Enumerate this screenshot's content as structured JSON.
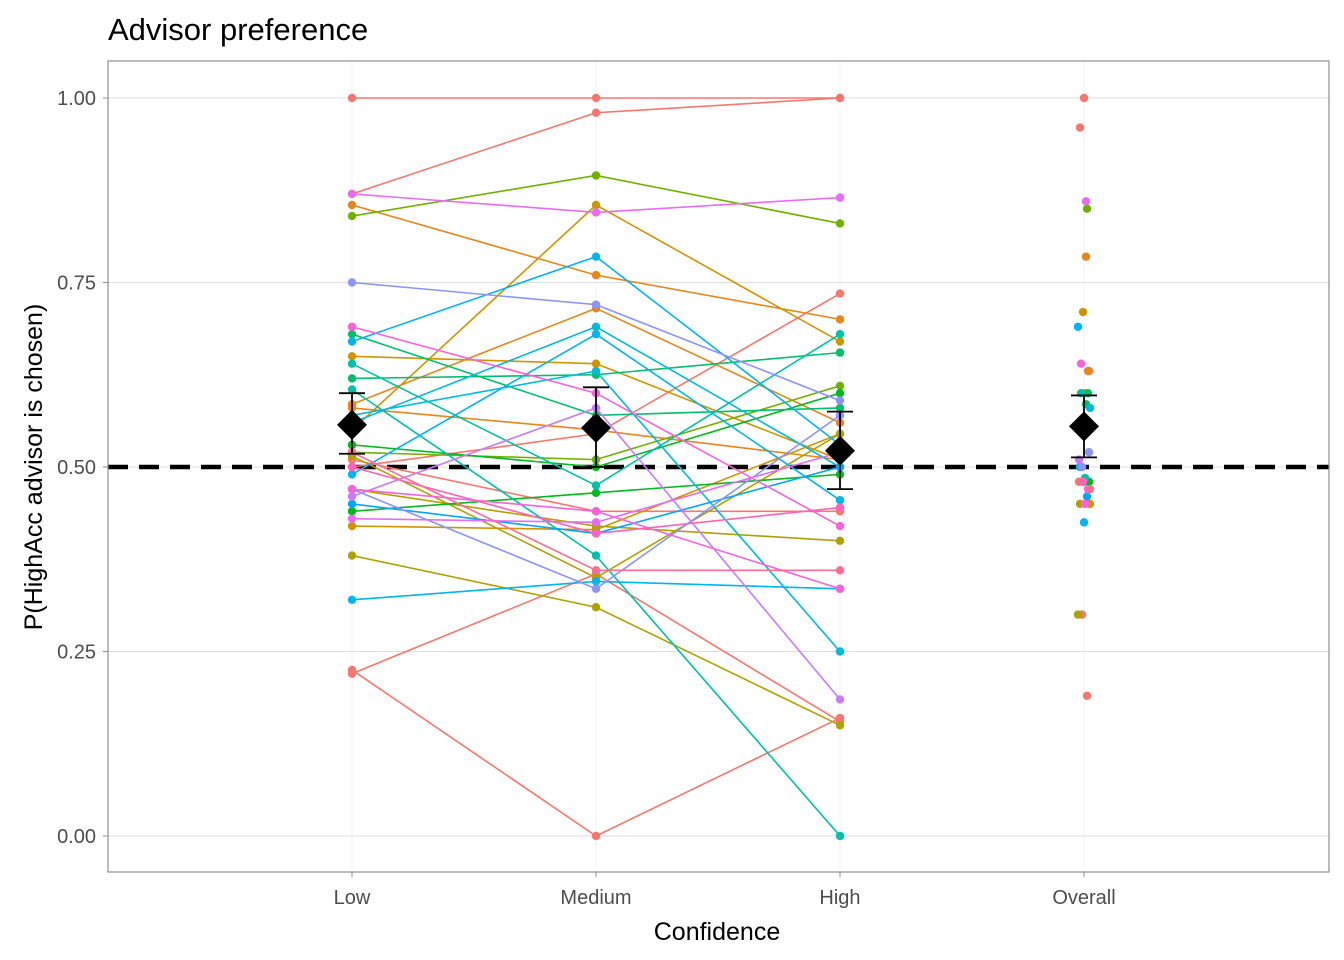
{
  "chart_data": {
    "type": "line",
    "title": "Advisor preference",
    "xlabel": "Confidence",
    "ylabel": "P(HighAcc advisor is chosen)",
    "categories": [
      "Low",
      "Medium",
      "High",
      "Overall"
    ],
    "ylim": [
      -0.05,
      1.05
    ],
    "yticks": [
      0.0,
      0.25,
      0.5,
      0.75,
      1.0
    ],
    "ytick_labels": [
      "0.00",
      "0.25",
      "0.50",
      "0.75",
      "1.00"
    ],
    "reference_line": {
      "y": 0.5,
      "style": "dashed",
      "color": "#000000"
    },
    "grid": true,
    "legend": "none",
    "series": [
      {
        "color": "#F8766D",
        "values": [
          1.0,
          1.0,
          1.0,
          1.0
        ]
      },
      {
        "color": "#F8766D",
        "values": [
          0.87,
          0.98,
          1.0,
          0.96
        ]
      },
      {
        "color": "#F8766D",
        "values": [
          0.225,
          0.0,
          0.16,
          0.19
        ]
      },
      {
        "color": "#F8766D",
        "values": [
          0.22,
          0.355,
          0.155,
          0.3
        ]
      },
      {
        "color": "#F8766D",
        "values": [
          0.5,
          0.545,
          0.735,
          0.63
        ]
      },
      {
        "color": "#F8766D",
        "values": [
          0.51,
          0.44,
          0.44,
          0.48
        ]
      },
      {
        "color": "#E7861B",
        "values": [
          0.855,
          0.76,
          0.7,
          0.785
        ]
      },
      {
        "color": "#E7861B",
        "values": [
          0.585,
          0.715,
          0.56,
          0.63
        ]
      },
      {
        "color": "#E7861B",
        "values": [
          0.58,
          0.55,
          0.51,
          0.55
        ]
      },
      {
        "color": "#D09400",
        "values": [
          0.65,
          0.64,
          0.51,
          0.6
        ]
      },
      {
        "color": "#D09400",
        "values": [
          0.55,
          0.855,
          0.67,
          0.71
        ]
      },
      {
        "color": "#D09400",
        "values": [
          0.42,
          0.415,
          0.545,
          0.45
        ]
      },
      {
        "color": "#AFA100",
        "values": [
          0.38,
          0.31,
          0.15,
          0.3
        ]
      },
      {
        "color": "#AFA100",
        "values": [
          0.515,
          0.35,
          0.545,
          0.48
        ]
      },
      {
        "color": "#AFA100",
        "values": [
          0.47,
          0.42,
          0.4,
          0.45
        ]
      },
      {
        "color": "#72B000",
        "values": [
          0.84,
          0.895,
          0.83,
          0.85
        ]
      },
      {
        "color": "#72B000",
        "values": [
          0.52,
          0.51,
          0.61,
          0.55
        ]
      },
      {
        "color": "#00B81F",
        "values": [
          0.44,
          0.465,
          0.49,
          0.48
        ]
      },
      {
        "color": "#00B81F",
        "values": [
          0.53,
          0.5,
          0.6,
          0.55
        ]
      },
      {
        "color": "#00BE6B",
        "values": [
          0.62,
          0.625,
          0.655,
          0.585
        ]
      },
      {
        "color": "#00BE6B",
        "values": [
          0.68,
          0.57,
          0.58,
          0.6
        ]
      },
      {
        "color": "#00C1A7",
        "values": [
          0.64,
          0.475,
          0.68,
          0.6
        ]
      },
      {
        "color": "#00C1A7",
        "values": [
          0.605,
          0.38,
          0.0,
          0.485
        ]
      },
      {
        "color": "#00BBDA",
        "values": [
          0.57,
          0.63,
          0.25,
          0.56
        ]
      },
      {
        "color": "#00BBDA",
        "values": [
          0.56,
          0.69,
          0.5,
          0.58
        ]
      },
      {
        "color": "#00B4EF",
        "values": [
          0.67,
          0.785,
          0.53,
          0.69
        ]
      },
      {
        "color": "#00B4EF",
        "values": [
          0.32,
          0.345,
          0.335,
          0.425
        ]
      },
      {
        "color": "#00B4EF",
        "values": [
          0.49,
          0.68,
          0.455,
          0.5
        ]
      },
      {
        "color": "#00A5FF",
        "values": [
          0.45,
          0.41,
          0.5,
          0.46
        ]
      },
      {
        "color": "#8B93FF",
        "values": [
          0.75,
          0.72,
          0.59,
          0.5
        ]
      },
      {
        "color": "#8B93FF",
        "values": [
          0.47,
          0.335,
          0.57,
          0.52
        ]
      },
      {
        "color": "#C77CFF",
        "values": [
          0.46,
          0.58,
          0.185,
          0.51
        ]
      },
      {
        "color": "#E76BF3",
        "values": [
          0.87,
          0.845,
          0.865,
          0.86
        ]
      },
      {
        "color": "#E76BF3",
        "values": [
          0.43,
          0.425,
          0.52,
          0.47
        ]
      },
      {
        "color": "#FA62DB",
        "values": [
          0.69,
          0.6,
          0.42,
          0.64
        ]
      },
      {
        "color": "#FA62DB",
        "values": [
          0.47,
          0.44,
          0.335,
          0.45
        ]
      },
      {
        "color": "#FF62BC",
        "values": [
          0.5,
          0.41,
          0.445,
          0.48
        ]
      },
      {
        "color": "#FF6C91",
        "values": [
          0.52,
          0.36,
          0.36,
          0.47
        ]
      }
    ],
    "summary": {
      "means": [
        0.557,
        0.553,
        0.522,
        0.555
      ],
      "ci_low": [
        0.518,
        0.5,
        0.47,
        0.513
      ],
      "ci_high": [
        0.6,
        0.608,
        0.575,
        0.597
      ]
    }
  }
}
